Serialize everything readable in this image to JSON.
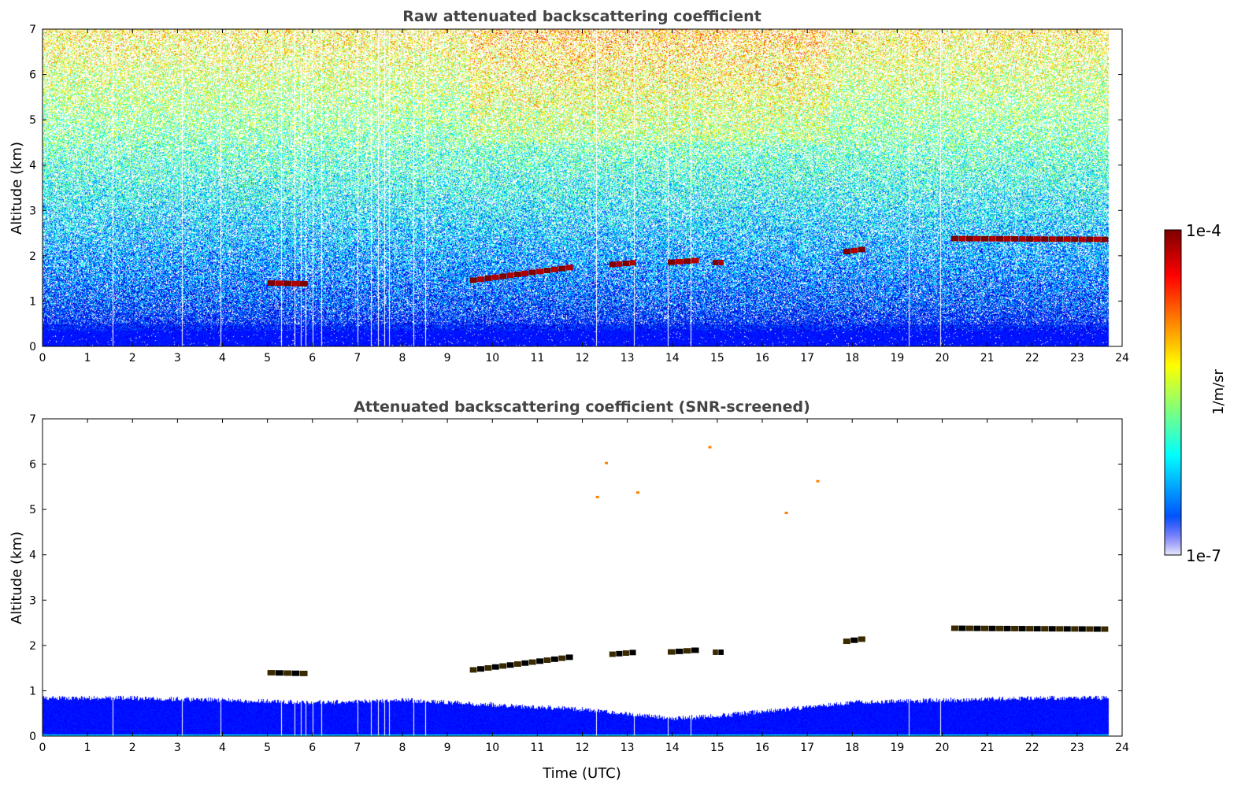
{
  "chart_data": [
    {
      "type": "heatmap",
      "title": "Raw attenuated backscattering coefficient",
      "xlabel": "",
      "ylabel": "Altitude (km)",
      "xlim": [
        0,
        24
      ],
      "ylim": [
        0,
        7
      ],
      "xticks": [
        "0",
        "1",
        "2",
        "3",
        "4",
        "5",
        "6",
        "7",
        "8",
        "9",
        "10",
        "11",
        "12",
        "13",
        "14",
        "15",
        "16",
        "17",
        "18",
        "19",
        "20",
        "21",
        "22",
        "23",
        "24"
      ],
      "yticks": [
        "0",
        "1",
        "2",
        "3",
        "4",
        "5",
        "6",
        "7"
      ],
      "data_end_utc": 23.7,
      "data_gaps_utc": [
        1.55,
        3.1,
        3.95,
        5.3,
        5.6,
        5.75,
        5.85,
        6.0,
        6.2,
        7.0,
        7.3,
        7.45,
        7.6,
        7.7,
        8.25,
        8.5,
        12.3,
        13.15,
        13.9,
        14.4,
        19.25,
        19.95
      ],
      "cloud_layers": [
        {
          "start": 5.0,
          "end": 5.9,
          "alt_start": 1.4,
          "alt_end": 1.38
        },
        {
          "start": 9.5,
          "end": 11.8,
          "alt_start": 1.45,
          "alt_end": 1.75
        },
        {
          "start": 12.6,
          "end": 13.2,
          "alt_start": 1.8,
          "alt_end": 1.85
        },
        {
          "start": 13.9,
          "end": 14.6,
          "alt_start": 1.85,
          "alt_end": 1.9
        },
        {
          "start": 14.9,
          "end": 15.15,
          "alt_start": 1.85,
          "alt_end": 1.85
        },
        {
          "start": 17.8,
          "end": 18.3,
          "alt_start": 2.08,
          "alt_end": 2.15
        },
        {
          "start": 20.2,
          "end": 23.7,
          "alt_start": 2.38,
          "alt_end": 2.36
        }
      ]
    },
    {
      "type": "heatmap",
      "title": "Attenuated backscattering coefficient (SNR-screened)",
      "xlabel": "Time (UTC)",
      "ylabel": "Altitude (km)",
      "xlim": [
        0,
        24
      ],
      "ylim": [
        0,
        7
      ],
      "xticks": [
        "0",
        "1",
        "2",
        "3",
        "4",
        "5",
        "6",
        "7",
        "8",
        "9",
        "10",
        "11",
        "12",
        "13",
        "14",
        "15",
        "16",
        "17",
        "18",
        "19",
        "20",
        "21",
        "22",
        "23",
        "24"
      ],
      "yticks": [
        "0",
        "1",
        "2",
        "3",
        "4",
        "5",
        "6",
        "7"
      ],
      "boundary_layer_top_km": {
        "time": [
          0,
          2,
          4,
          6,
          8,
          9,
          10,
          11,
          12,
          13,
          13.5,
          14,
          15,
          16,
          17,
          18,
          20,
          22,
          23.7
        ],
        "alt": [
          0.85,
          0.85,
          0.8,
          0.75,
          0.8,
          0.75,
          0.7,
          0.65,
          0.6,
          0.5,
          0.45,
          0.4,
          0.45,
          0.55,
          0.65,
          0.75,
          0.8,
          0.85,
          0.85
        ]
      },
      "cloud_layers": [
        {
          "start": 5.0,
          "end": 5.9,
          "alt_start": 1.4,
          "alt_end": 1.38
        },
        {
          "start": 9.5,
          "end": 11.8,
          "alt_start": 1.45,
          "alt_end": 1.75
        },
        {
          "start": 12.6,
          "end": 13.2,
          "alt_start": 1.8,
          "alt_end": 1.85
        },
        {
          "start": 13.9,
          "end": 14.6,
          "alt_start": 1.85,
          "alt_end": 1.9
        },
        {
          "start": 14.9,
          "end": 15.15,
          "alt_start": 1.85,
          "alt_end": 1.85
        },
        {
          "start": 17.8,
          "end": 18.3,
          "alt_start": 2.08,
          "alt_end": 2.15
        },
        {
          "start": 20.2,
          "end": 23.7,
          "alt_start": 2.38,
          "alt_end": 2.36
        }
      ],
      "high_cloud_specks": [
        {
          "time": 12.3,
          "alt": 5.3
        },
        {
          "time": 13.2,
          "alt": 5.4
        },
        {
          "time": 16.5,
          "alt": 4.95
        },
        {
          "time": 17.2,
          "alt": 5.65
        },
        {
          "time": 12.5,
          "alt": 6.05
        },
        {
          "time": 14.8,
          "alt": 6.4
        }
      ]
    }
  ],
  "colorbar": {
    "label": "1/m/sr",
    "max_label": "1e-4",
    "min_label": "1e-7",
    "min": 1e-07,
    "max": 0.0001,
    "scale": "log",
    "colormap": "jet"
  }
}
